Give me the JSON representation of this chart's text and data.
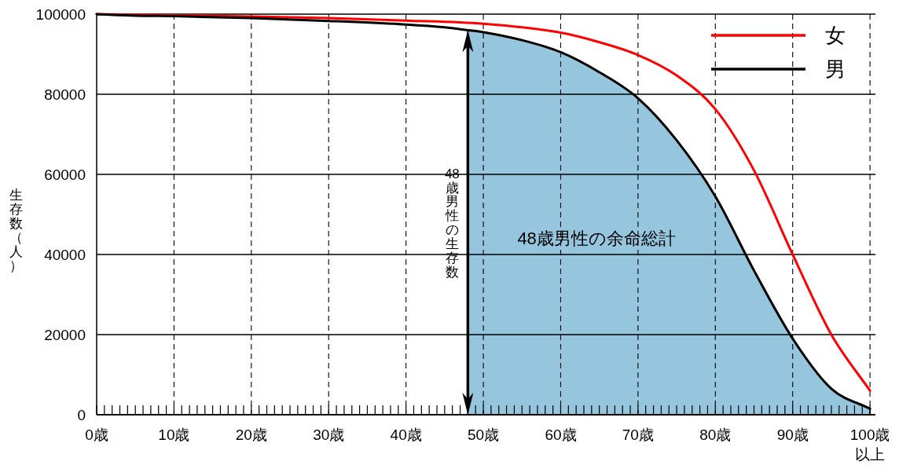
{
  "chart_data": {
    "type": "line",
    "xlabel": null,
    "ylabel": "生存数（人）",
    "xlim": [
      0,
      100.7
    ],
    "ylim": [
      0,
      100000
    ],
    "xticks": [
      {
        "value": 0,
        "label": "0歳"
      },
      {
        "value": 1,
        "label": null
      },
      {
        "value": 2,
        "label": null
      },
      {
        "value": 3,
        "label": null
      },
      {
        "value": 4,
        "label": null
      },
      {
        "value": 5,
        "label": null
      },
      {
        "value": 6,
        "label": null
      },
      {
        "value": 7,
        "label": null
      },
      {
        "value": 8,
        "label": null
      },
      {
        "value": 9,
        "label": null
      },
      {
        "value": 10,
        "label": "10歳"
      },
      {
        "value": 11,
        "label": null
      },
      {
        "value": 12,
        "label": null
      },
      {
        "value": 13,
        "label": null
      },
      {
        "value": 14,
        "label": null
      },
      {
        "value": 15,
        "label": null
      },
      {
        "value": 16,
        "label": null
      },
      {
        "value": 17,
        "label": null
      },
      {
        "value": 18,
        "label": null
      },
      {
        "value": 19,
        "label": null
      },
      {
        "value": 20,
        "label": "20歳"
      },
      {
        "value": 21,
        "label": null
      },
      {
        "value": 22,
        "label": null
      },
      {
        "value": 23,
        "label": null
      },
      {
        "value": 24,
        "label": null
      },
      {
        "value": 25,
        "label": null
      },
      {
        "value": 26,
        "label": null
      },
      {
        "value": 27,
        "label": null
      },
      {
        "value": 28,
        "label": null
      },
      {
        "value": 29,
        "label": null
      },
      {
        "value": 30,
        "label": "30歳"
      },
      {
        "value": 31,
        "label": null
      },
      {
        "value": 32,
        "label": null
      },
      {
        "value": 33,
        "label": null
      },
      {
        "value": 34,
        "label": null
      },
      {
        "value": 35,
        "label": null
      },
      {
        "value": 36,
        "label": null
      },
      {
        "value": 37,
        "label": null
      },
      {
        "value": 38,
        "label": null
      },
      {
        "value": 39,
        "label": null
      },
      {
        "value": 40,
        "label": "40歳"
      },
      {
        "value": 41,
        "label": null
      },
      {
        "value": 42,
        "label": null
      },
      {
        "value": 43,
        "label": null
      },
      {
        "value": 44,
        "label": null
      },
      {
        "value": 45,
        "label": null
      },
      {
        "value": 46,
        "label": null
      },
      {
        "value": 47,
        "label": null
      },
      {
        "value": 48,
        "label": null
      },
      {
        "value": 49,
        "label": null
      },
      {
        "value": 50,
        "label": "50歳"
      },
      {
        "value": 51,
        "label": null
      },
      {
        "value": 52,
        "label": null
      },
      {
        "value": 53,
        "label": null
      },
      {
        "value": 54,
        "label": null
      },
      {
        "value": 55,
        "label": null
      },
      {
        "value": 56,
        "label": null
      },
      {
        "value": 57,
        "label": null
      },
      {
        "value": 58,
        "label": null
      },
      {
        "value": 59,
        "label": null
      },
      {
        "value": 60,
        "label": "60歳"
      },
      {
        "value": 61,
        "label": null
      },
      {
        "value": 62,
        "label": null
      },
      {
        "value": 63,
        "label": null
      },
      {
        "value": 64,
        "label": null
      },
      {
        "value": 65,
        "label": null
      },
      {
        "value": 66,
        "label": null
      },
      {
        "value": 67,
        "label": null
      },
      {
        "value": 68,
        "label": null
      },
      {
        "value": 69,
        "label": null
      },
      {
        "value": 70,
        "label": "70歳"
      },
      {
        "value": 71,
        "label": null
      },
      {
        "value": 72,
        "label": null
      },
      {
        "value": 73,
        "label": null
      },
      {
        "value": 74,
        "label": null
      },
      {
        "value": 75,
        "label": null
      },
      {
        "value": 76,
        "label": null
      },
      {
        "value": 77,
        "label": null
      },
      {
        "value": 78,
        "label": null
      },
      {
        "value": 79,
        "label": null
      },
      {
        "value": 80,
        "label": "80歳"
      },
      {
        "value": 81,
        "label": null
      },
      {
        "value": 82,
        "label": null
      },
      {
        "value": 83,
        "label": null
      },
      {
        "value": 84,
        "label": null
      },
      {
        "value": 85,
        "label": null
      },
      {
        "value": 86,
        "label": null
      },
      {
        "value": 87,
        "label": null
      },
      {
        "value": 88,
        "label": null
      },
      {
        "value": 89,
        "label": null
      },
      {
        "value": 90,
        "label": "90歳"
      },
      {
        "value": 91,
        "label": null
      },
      {
        "value": 92,
        "label": null
      },
      {
        "value": 93,
        "label": null
      },
      {
        "value": 94,
        "label": null
      },
      {
        "value": 95,
        "label": null
      },
      {
        "value": 96,
        "label": null
      },
      {
        "value": 97,
        "label": null
      },
      {
        "value": 98,
        "label": null
      },
      {
        "value": 99,
        "label": null
      },
      {
        "value": 100,
        "label": "100歳以上"
      }
    ],
    "yticks": [
      0,
      20000,
      40000,
      60000,
      80000,
      100000
    ],
    "grid": true,
    "legend": "top right",
    "line_style": "solid",
    "series": [
      {
        "type": "area",
        "name": "48歳男性の余命総計",
        "color": "#96c6de",
        "x": [
          48,
          50,
          55,
          60,
          65,
          70,
          75,
          80,
          85,
          90,
          95,
          100
        ],
        "values": [
          96000,
          95500,
          93500,
          90500,
          85500,
          79000,
          68500,
          54500,
          36000,
          19000,
          6500,
          1500
        ]
      },
      {
        "name": "女",
        "color": "#ff0000",
        "x": [
          0,
          10,
          20,
          30,
          40,
          50,
          60,
          65,
          70,
          75,
          80,
          85,
          90,
          95,
          100
        ],
        "values": [
          100000,
          99700,
          99400,
          99000,
          98400,
          97600,
          95400,
          93000,
          89800,
          84700,
          76300,
          61000,
          40000,
          20000,
          6000
        ]
      },
      {
        "name": "男",
        "color": "#000000",
        "x": [
          0,
          5,
          10,
          20,
          30,
          40,
          45,
          48,
          50,
          55,
          60,
          65,
          70,
          75,
          80,
          85,
          90,
          95,
          100
        ],
        "values": [
          100000,
          99600,
          99500,
          99000,
          98300,
          97400,
          96700,
          96000,
          95500,
          93500,
          90500,
          85500,
          79000,
          68500,
          54500,
          36000,
          19000,
          6500,
          1500
        ]
      }
    ],
    "ref_lines": [
      {
        "axis": "x",
        "value": 48,
        "label": "48歳男性の生存数",
        "color": "#000000"
      }
    ]
  }
}
